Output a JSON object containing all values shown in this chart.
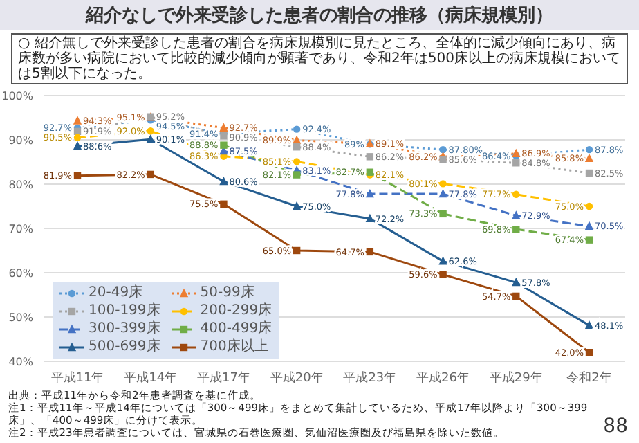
{
  "chart_data": {
    "type": "line",
    "title": "紹介なしで外来受診した患者の割合の推移（病床規模別）",
    "subtitle": "○ 紹介無しで外来受診した患者の割合を病床規模別に見たところ、全体的に減少傾向にあり、病床数が多い病院において比較的減少傾向が顕著であり、令和2年は500床以上の病床規模においては5割以下になった。",
    "categories": [
      "平成11年",
      "平成14年",
      "平成17年",
      "平成20年",
      "平成23年",
      "平成26年",
      "平成29年",
      "令和2年"
    ],
    "series": [
      {
        "name": "20-49床",
        "color": "#5b9bd5",
        "line_style": "dotted",
        "marker": "circle",
        "values": [
          92.7,
          94.5,
          91.4,
          92.4,
          89,
          87.8,
          86.4,
          87.8
        ],
        "value_labels": [
          "92.7%",
          "94.5%",
          "91.4%",
          "92.4%",
          "89%",
          "87.80%",
          "86.4%",
          "87.8%"
        ]
      },
      {
        "name": "50-99床",
        "color": "#ed7d31",
        "line_style": "dotted",
        "marker": "triangle",
        "values": [
          94.3,
          95.1,
          92.7,
          89.9,
          89.1,
          86.2,
          86.9,
          85.8
        ],
        "value_labels": [
          "94.3%",
          "95.1%",
          "92.7%",
          "89.9%",
          "89.1%",
          "86.2%",
          "86.9%",
          "85.8%"
        ]
      },
      {
        "name": "100-199床",
        "color": "#a5a5a5",
        "line_style": "dotted",
        "marker": "square",
        "values": [
          91.9,
          95.2,
          90.9,
          88.4,
          86.2,
          85.6,
          84.8,
          82.5
        ],
        "value_labels": [
          "91.9%",
          "95.2%",
          "90.9%",
          "88.4%",
          "86.2%",
          "85.6%",
          "84.8%",
          "82.5%"
        ]
      },
      {
        "name": "200-299床",
        "color": "#ffc000",
        "line_style": "dashed",
        "marker": "circle",
        "values": [
          90.5,
          92.0,
          86.3,
          85.1,
          82.1,
          80.1,
          77.7,
          75.0
        ],
        "value_labels": [
          "90.5%",
          "92.0%",
          "86.3%",
          "85.1%",
          "82.1%",
          "80.1%",
          "77.7%",
          "75.0%"
        ]
      },
      {
        "name": "300-399床",
        "color": "#4472c4",
        "line_style": "dashed",
        "marker": "triangle",
        "values": [
          null,
          null,
          87.5,
          83.1,
          77.8,
          77.8,
          72.9,
          70.5
        ],
        "value_labels": [
          null,
          null,
          "87.5%",
          "83.1%",
          "77.8%",
          "77.8%",
          "72.9%",
          "70.5%"
        ]
      },
      {
        "name": "400-499床",
        "color": "#70ad47",
        "line_style": "dashed",
        "marker": "square",
        "values": [
          null,
          null,
          88.8,
          82.1,
          82.7,
          73.3,
          69.8,
          67.4
        ],
        "value_labels": [
          null,
          null,
          "88.8%",
          "82.1%",
          "82.7%",
          "73.3%",
          "69.8%",
          "67.4%"
        ]
      },
      {
        "name": "500-699床",
        "color": "#255e91",
        "line_style": "solid",
        "marker": "triangle",
        "values": [
          88.6,
          90.1,
          80.6,
          75.0,
          72.2,
          62.6,
          57.8,
          48.1
        ],
        "value_labels": [
          "88.6%",
          "90.1%",
          "80.6%",
          "75.0%",
          "72.2%",
          "62.6%",
          "57.8%",
          "48.1%"
        ]
      },
      {
        "name": "700床以上",
        "color": "#9e480e",
        "line_style": "solid",
        "marker": "square",
        "values": [
          81.9,
          82.2,
          75.5,
          65.0,
          64.7,
          59.6,
          54.7,
          42.0
        ],
        "value_labels": [
          "81.9%",
          "82.2%",
          "75.5%",
          "65.0%",
          "64.7%",
          "59.6%",
          "54.7%",
          "42.0%"
        ]
      }
    ],
    "ylim": [
      40,
      100
    ],
    "yticks": [
      {
        "value": 40,
        "label": "40%"
      },
      {
        "value": 50,
        "label": "50%"
      },
      {
        "value": 60,
        "label": "60%"
      },
      {
        "value": 70,
        "label": "70%"
      },
      {
        "value": 80,
        "label": "80%"
      },
      {
        "value": 90,
        "label": "90%"
      },
      {
        "value": 100,
        "label": "100%"
      }
    ],
    "grid": "y",
    "legend": "bottom left",
    "annotations": [
      "出典：平成11年から令和2年患者調査を基に作成。",
      "注1：平成11年～平成14年については「300～499床」をまとめて集計しているため、平成17年以降より「300～399床」、「400～499床」に分けて表示。",
      "注2：平成23年患者調査については、宮城県の石巻医療圏、気仙沼医療圏及び福島県を除いた数値。",
      "88"
    ]
  }
}
